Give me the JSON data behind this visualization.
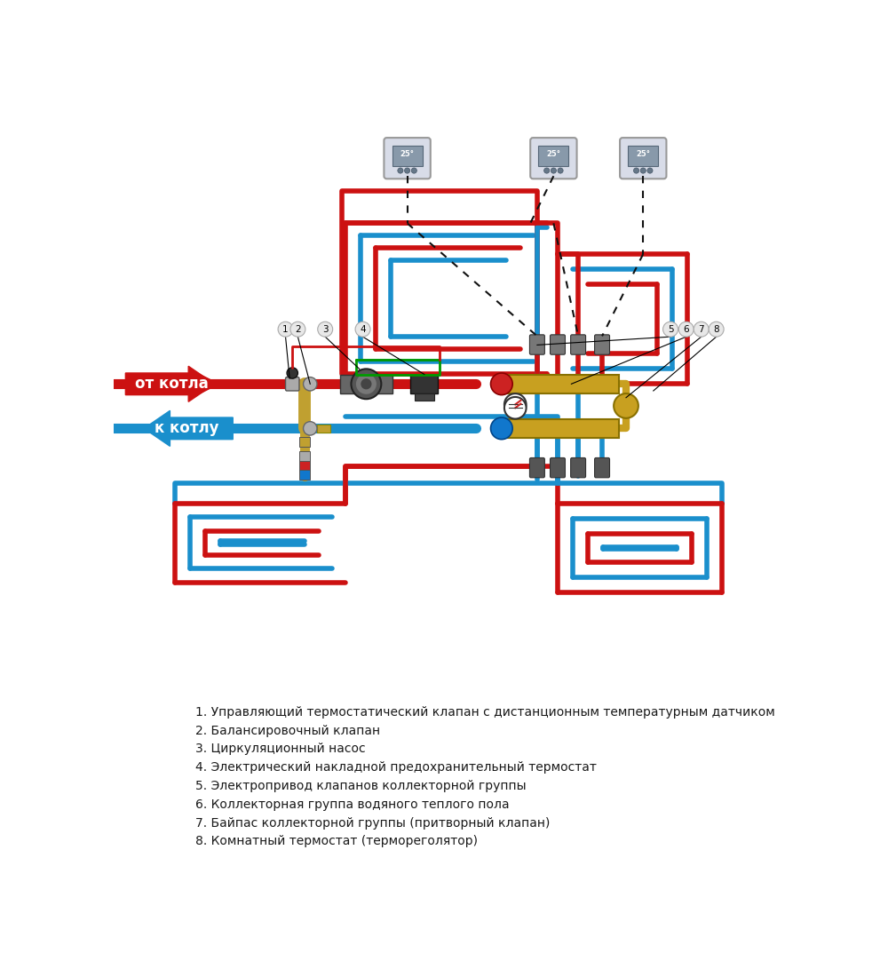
{
  "bg_color": "#ffffff",
  "legend_items": [
    "1. Управляющий термостатический клапан с дистанционным температурным датчиком",
    "2. Балансировочный клапан",
    "3. Циркуляционный насос",
    "4. Электрический накладной предохранительный термостат",
    "5. Электропривод клапанов коллекторной группы",
    "6. Коллекторная группа водяного теплого пола",
    "7. Байпас коллекторной группы (притворный клапан)",
    "8. Комнатный термостат (термореголятор)"
  ],
  "hot_color": "#cc1111",
  "cold_color": "#1a8fcc",
  "label_from": "от котла",
  "label_to": "к котлу"
}
